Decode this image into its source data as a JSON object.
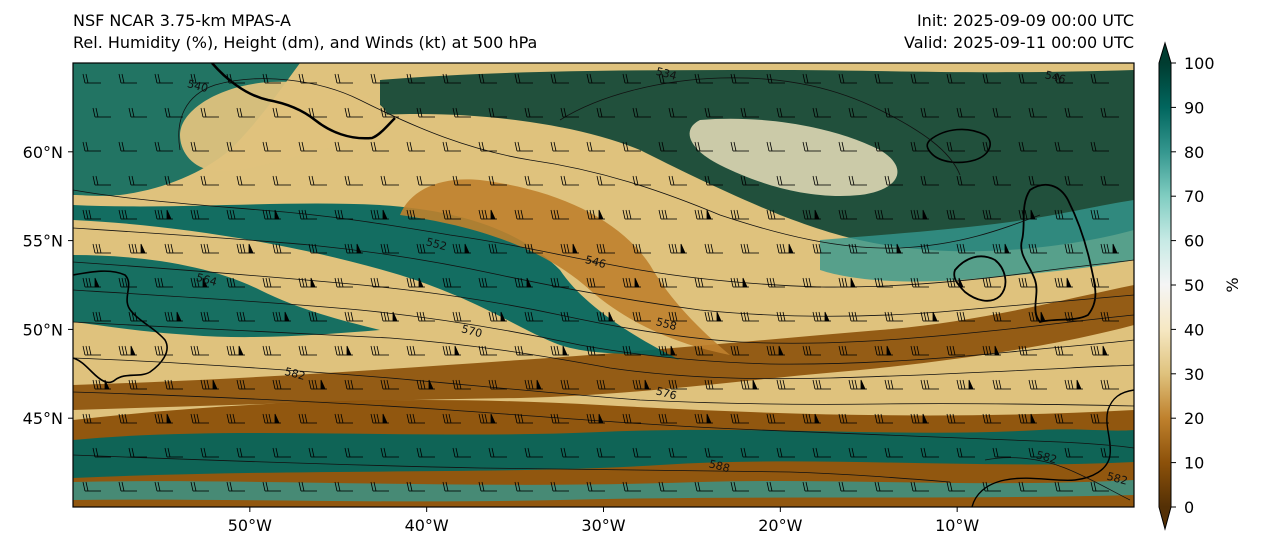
{
  "header": {
    "model_title": "NSF NCAR 3.75-km MPAS-A",
    "field_title": "Rel. Humidity (%), Height (dm), and Winds (kt) at 500 hPa",
    "init_time": "Init: 2025-09-09 00:00 UTC",
    "valid_time": "Valid: 2025-09-11 00:00 UTC"
  },
  "map": {
    "lon_range": [
      -60,
      0
    ],
    "lat_range": [
      40,
      65
    ],
    "lat_ticks": [
      {
        "value": 45,
        "label": "45°N"
      },
      {
        "value": 50,
        "label": "50°N"
      },
      {
        "value": 55,
        "label": "55°N"
      },
      {
        "value": 60,
        "label": "60°N"
      }
    ],
    "lon_ticks": [
      {
        "value": -50,
        "label": "50°W"
      },
      {
        "value": -40,
        "label": "40°W"
      },
      {
        "value": -30,
        "label": "30°W"
      },
      {
        "value": -20,
        "label": "20°W"
      },
      {
        "value": -10,
        "label": "10°W"
      }
    ],
    "height_contour_labels": [
      {
        "label": "540",
        "lon": -53,
        "lat": 63.5
      },
      {
        "label": "534",
        "lon": -26.5,
        "lat": 64.2
      },
      {
        "label": "546",
        "lon": -4.5,
        "lat": 64
      },
      {
        "label": "552",
        "lon": -39.5,
        "lat": 54.6
      },
      {
        "label": "546",
        "lon": -30.5,
        "lat": 53.6
      },
      {
        "label": "564",
        "lon": -52.5,
        "lat": 52.6
      },
      {
        "label": "558",
        "lon": -26.5,
        "lat": 50.1
      },
      {
        "label": "570",
        "lon": -37.5,
        "lat": 49.7
      },
      {
        "label": "582",
        "lon": -47.5,
        "lat": 47.3
      },
      {
        "label": "576",
        "lon": -26.5,
        "lat": 46.2
      },
      {
        "label": "588",
        "lon": -23.5,
        "lat": 42.1
      },
      {
        "label": "582",
        "lon": -5,
        "lat": 42.6
      },
      {
        "label": "582",
        "lon": -1,
        "lat": 41.4
      }
    ]
  },
  "colorbar": {
    "unit": "%",
    "range": [
      0,
      100
    ],
    "ticks": [
      "0",
      "10",
      "20",
      "30",
      "40",
      "50",
      "60",
      "70",
      "80",
      "90",
      "100"
    ],
    "stops": [
      {
        "value": 0,
        "color": "#543005"
      },
      {
        "value": 10,
        "color": "#8c510a"
      },
      {
        "value": 20,
        "color": "#bf812d"
      },
      {
        "value": 30,
        "color": "#dfc27d"
      },
      {
        "value": 40,
        "color": "#f6e8c3"
      },
      {
        "value": 50,
        "color": "#f5f5f5"
      },
      {
        "value": 60,
        "color": "#c7eae5"
      },
      {
        "value": 70,
        "color": "#80cdc1"
      },
      {
        "value": 80,
        "color": "#35978f"
      },
      {
        "value": 90,
        "color": "#01665e"
      },
      {
        "value": 100,
        "color": "#003c30"
      }
    ]
  }
}
